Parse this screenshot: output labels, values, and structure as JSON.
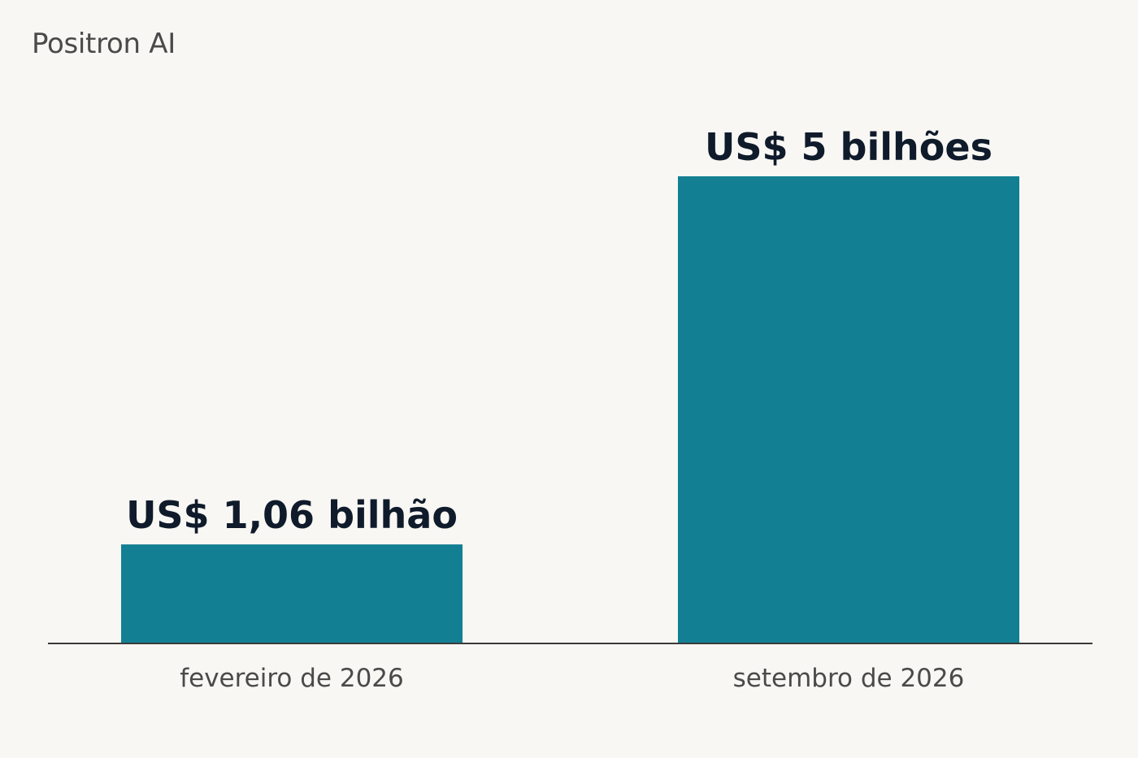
{
  "chart_data": {
    "type": "bar",
    "title": "Positron AI",
    "categories": [
      "fevereiro de 2026",
      "setembro de 2026"
    ],
    "values": [
      1.06,
      5
    ],
    "value_labels": [
      "US$ 1,06 bilhão",
      "US$ 5 bilhões"
    ],
    "unit": "US$ bilhões",
    "ylim": [
      0,
      5
    ],
    "grid": false,
    "colors": {
      "bar": "#137f93",
      "axis": "#3a3a3a",
      "value_text": "#0f1b2b",
      "category_text": "#4a4a4a",
      "background": "#f8f7f3"
    }
  }
}
